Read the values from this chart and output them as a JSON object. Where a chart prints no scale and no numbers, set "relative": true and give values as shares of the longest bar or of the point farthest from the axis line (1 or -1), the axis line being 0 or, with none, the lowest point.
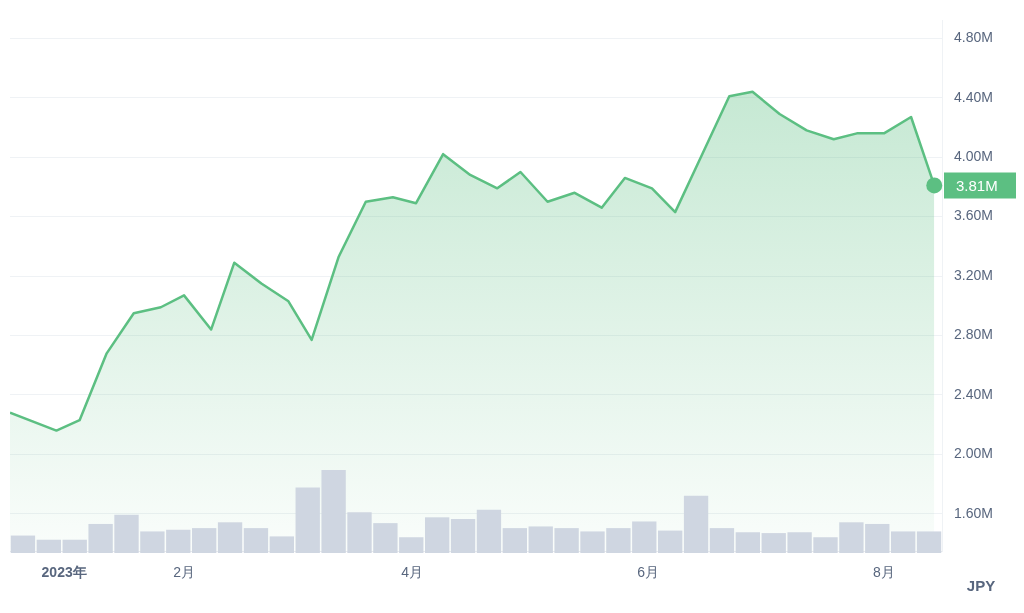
{
  "chart_data": [
    {
      "type": "area",
      "ylabel": "JPY",
      "color": "#5cbf82",
      "x": [
        "2022-12-18",
        "2022-12-30",
        "2023-01-05",
        "2023-01-12",
        "2023-01-19",
        "2023-01-26",
        "2023-02-01",
        "2023-02-08",
        "2023-02-14",
        "2023-02-21",
        "2023-02-28",
        "2023-03-06",
        "2023-03-13",
        "2023-03-20",
        "2023-03-27",
        "2023-04-02",
        "2023-04-09",
        "2023-04-16",
        "2023-04-23",
        "2023-04-29",
        "2023-05-06",
        "2023-05-13",
        "2023-05-20",
        "2023-05-26",
        "2023-06-02",
        "2023-06-08",
        "2023-06-15",
        "2023-06-22",
        "2023-06-28",
        "2023-07-05",
        "2023-07-12",
        "2023-07-19",
        "2023-07-25",
        "2023-08-01",
        "2023-08-08",
        "2023-08-14"
      ],
      "values": [
        2.28,
        2.16,
        2.23,
        2.68,
        2.95,
        2.99,
        3.07,
        2.84,
        3.29,
        3.15,
        3.03,
        2.77,
        3.33,
        3.7,
        3.73,
        3.69,
        4.02,
        3.88,
        3.79,
        3.9,
        3.7,
        3.76,
        3.66,
        3.86,
        3.79,
        3.63,
        4.02,
        4.41,
        4.44,
        4.29,
        4.18,
        4.12,
        4.16,
        4.16,
        4.27,
        3.81
      ],
      "value_labels": [
        null,
        null,
        null,
        null,
        null,
        null,
        null,
        null,
        null,
        null,
        null,
        null,
        null,
        null,
        null,
        null,
        null,
        null,
        null,
        null,
        null,
        null,
        null,
        null,
        null,
        null,
        null,
        null,
        null,
        null,
        null,
        null,
        null,
        null,
        null,
        "3.81M"
      ],
      "xlim": [
        "2022-12-18",
        "2023-08-16"
      ],
      "xticks": [
        {
          "value": "2023-01-01",
          "label": "2023年"
        },
        {
          "value": "2023-02-01",
          "label": "2月"
        },
        {
          "value": "2023-04-01",
          "label": "4月"
        },
        {
          "value": "2023-06-01",
          "label": "6月"
        },
        {
          "value": "2023-08-01",
          "label": "8月"
        }
      ],
      "ylim": [
        1.35,
        4.92
      ],
      "yticks": [
        {
          "value": 1.6,
          "label": "1.60M"
        },
        {
          "value": 2.0,
          "label": "2.00M"
        },
        {
          "value": 2.4,
          "label": "2.40M"
        },
        {
          "value": 2.8,
          "label": "2.80M"
        },
        {
          "value": 3.2,
          "label": "3.20M"
        },
        {
          "value": 3.6,
          "label": "3.60M"
        },
        {
          "value": 4.0,
          "label": "4.00M"
        },
        {
          "value": 4.4,
          "label": "4.40M"
        },
        {
          "value": 4.8,
          "label": "4.80M"
        }
      ],
      "grid": "y",
      "legend": false,
      "marker": "none"
    },
    {
      "type": "bar",
      "relative": true,
      "color": "#cfd6e1",
      "legend": false,
      "categories": [
        null,
        null,
        null,
        null,
        null,
        null,
        null,
        null,
        null,
        null,
        null,
        null,
        null,
        null,
        null,
        null,
        null,
        null,
        null,
        null,
        null,
        null,
        null,
        null,
        null,
        null,
        null,
        null,
        null,
        null,
        null,
        null,
        null,
        null,
        null,
        null
      ],
      "values": [
        0.21,
        0.16,
        0.16,
        0.35,
        0.46,
        0.26,
        0.28,
        0.3,
        0.37,
        0.3,
        0.2,
        0.79,
        1,
        0.49,
        0.36,
        0.19,
        0.43,
        0.41,
        0.52,
        0.3,
        0.32,
        0.3,
        0.26,
        0.3,
        0.38,
        0.27,
        0.69,
        0.3,
        0.25,
        0.24,
        0.25,
        0.19,
        0.37,
        0.35,
        0.26,
        0.26
      ]
    }
  ]
}
